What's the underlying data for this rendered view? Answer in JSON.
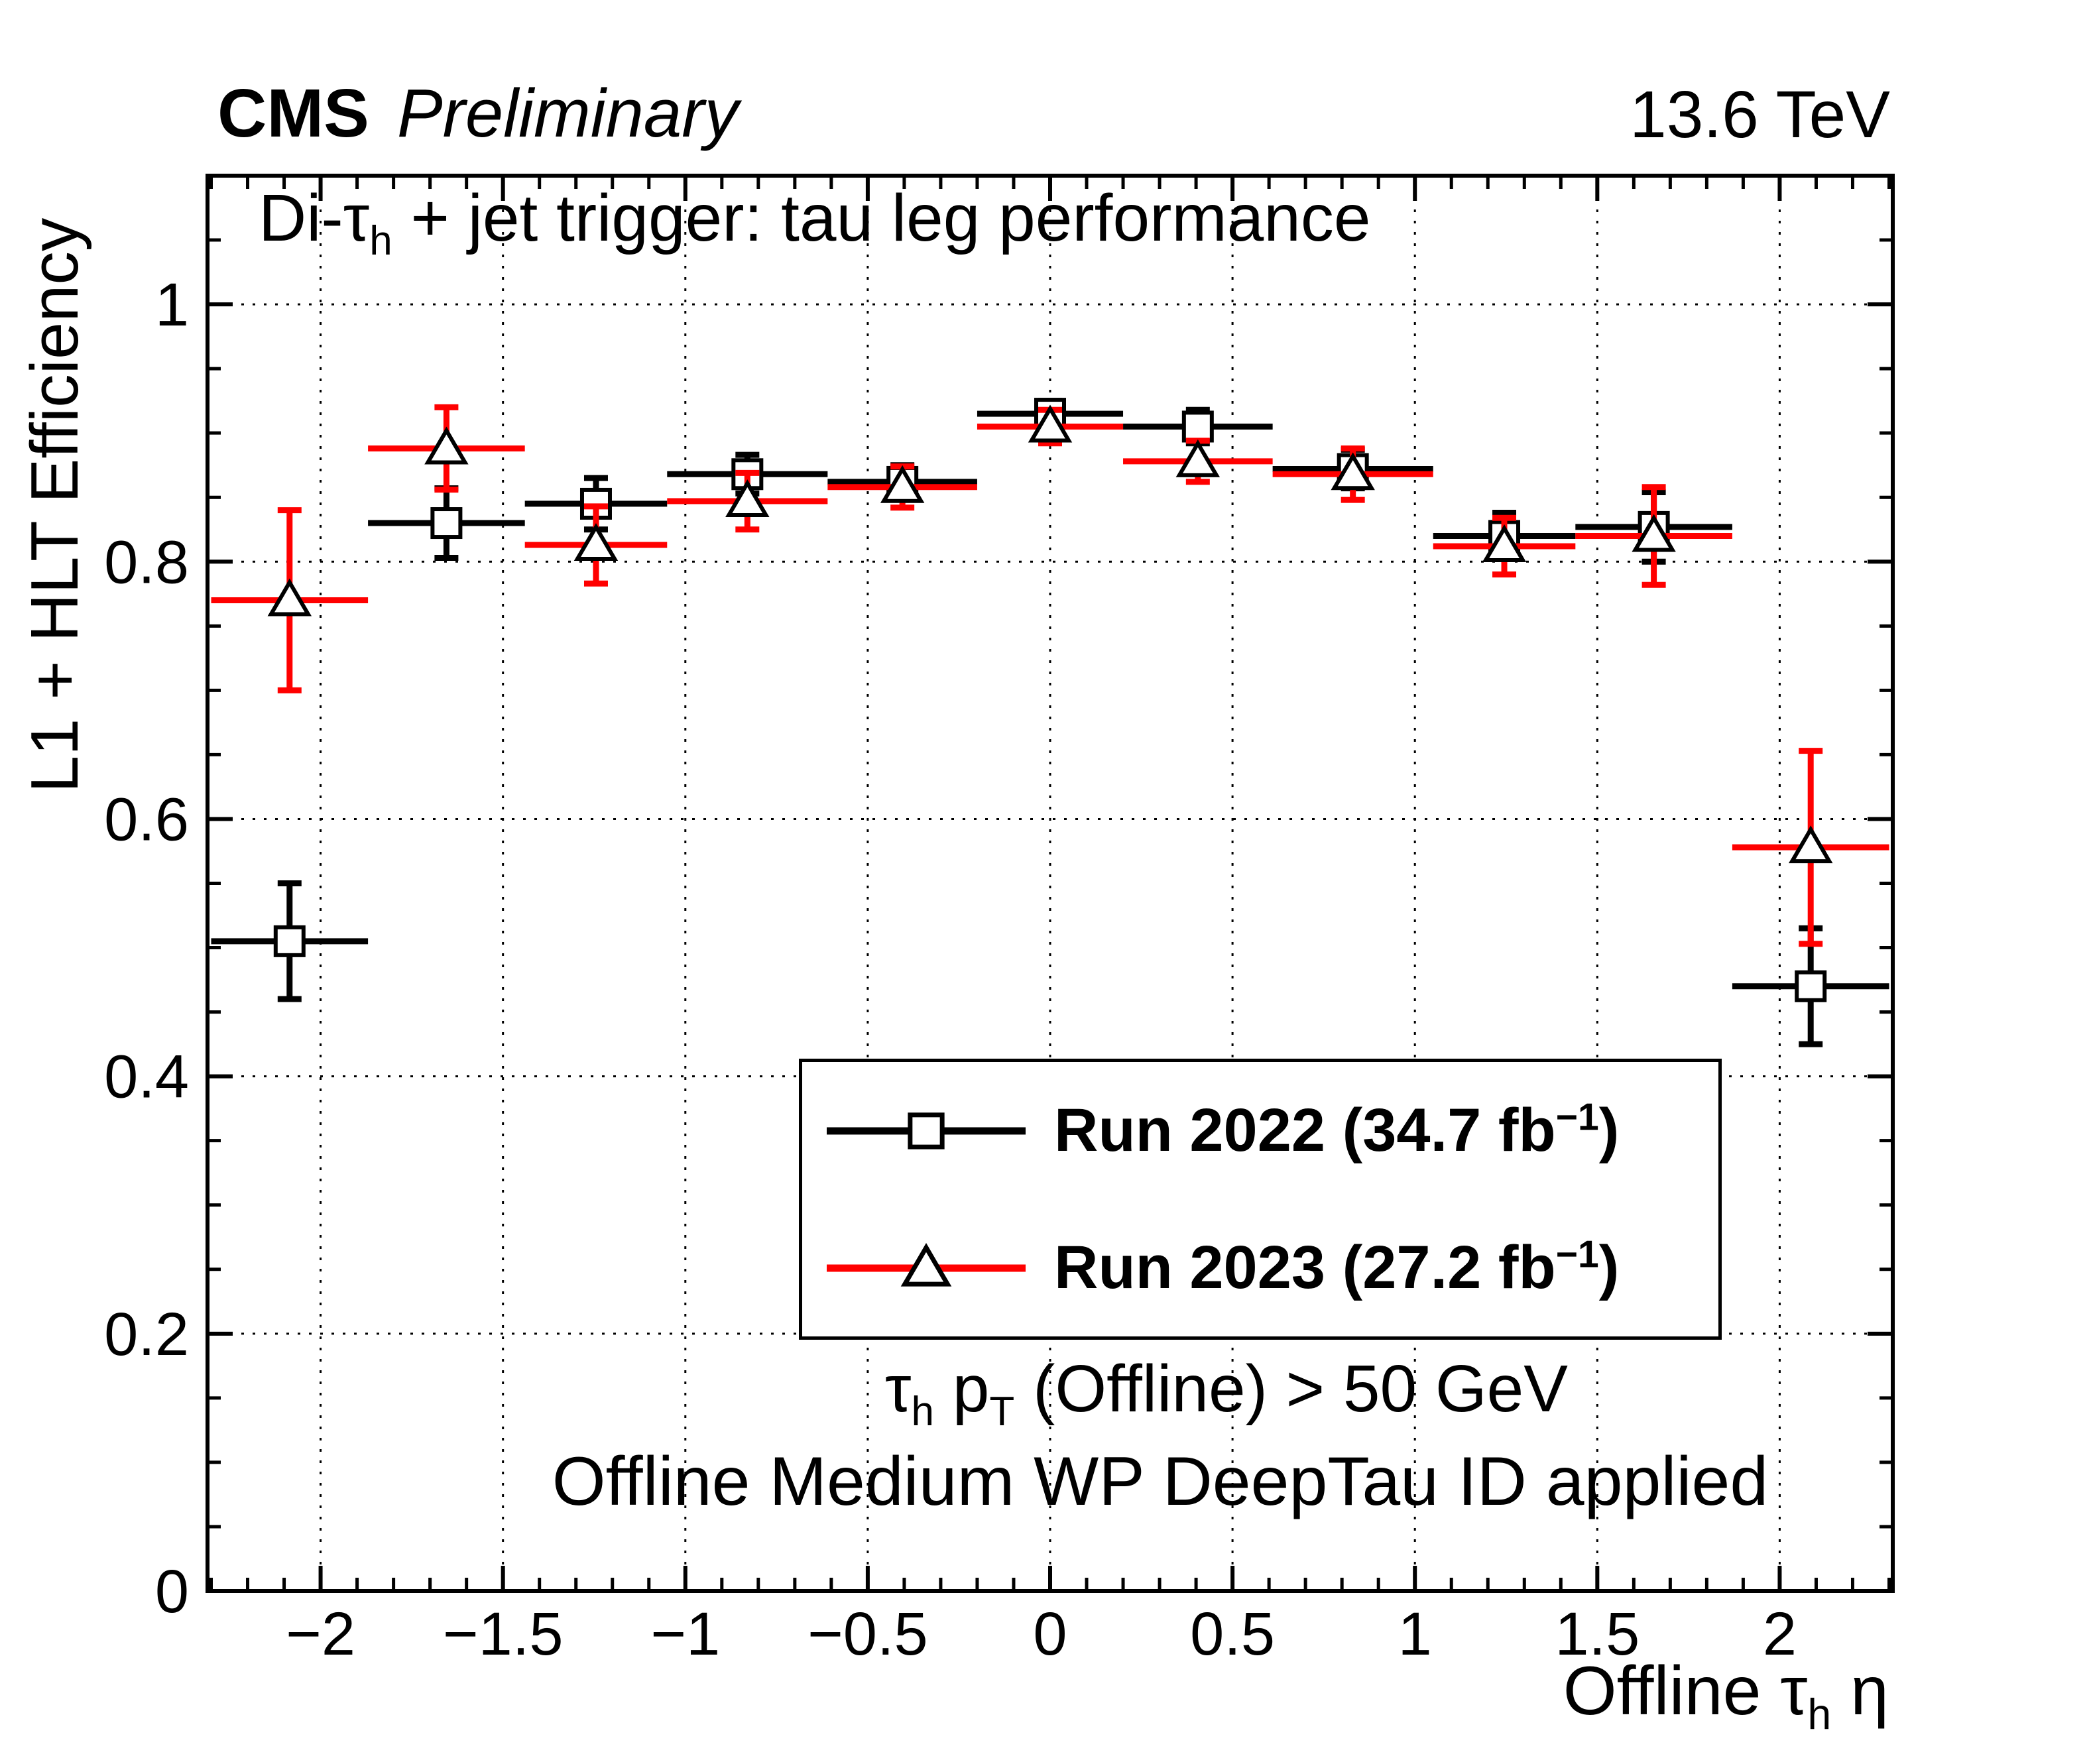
{
  "header": {
    "experiment": "CMS",
    "status": "Preliminary",
    "energy": "13.6 TeV"
  },
  "plot_title": {
    "p1": "Di-τ",
    "sub1": "h",
    "p2": " + jet trigger: tau leg performance"
  },
  "axes": {
    "y_title": "L1 + HLT Efficiency",
    "x_title": {
      "p1": "Offline τ",
      "sub1": "h",
      "p2": " η"
    }
  },
  "legend": {
    "entries": [
      {
        "main": "Run 2022 (34.7 fb",
        "sup": "−1",
        "end": ")"
      },
      {
        "main": "Run 2023 (27.2 fb",
        "sup": "−1",
        "end": ")"
      }
    ]
  },
  "annotations": {
    "cut1": {
      "p1": "τ",
      "sub1": "h",
      "p2": " p",
      "sub2": "T",
      "p3": " (Offline) > 50 GeV"
    },
    "cut2": "Offline Medium WP DeepTau ID applied"
  },
  "chart_data": {
    "type": "scatter",
    "title": "Di-tau_h + jet trigger: tau leg performance",
    "xlabel": "Offline tau_h eta",
    "ylabel": "L1 + HLT Efficiency",
    "xlim": [
      -2.31,
      2.31
    ],
    "ylim": [
      0,
      1.1
    ],
    "grid": "dotted",
    "legend_position": "center-right",
    "x_major_ticks": [
      -2,
      -1.5,
      -1,
      -0.5,
      0,
      0.5,
      1,
      1.5,
      2
    ],
    "x_tick_labels": [
      "−2",
      "−1.5",
      "−1",
      "−0.5",
      "0",
      "0.5",
      "1",
      "1.5",
      "2"
    ],
    "x_minor_step": 0.1,
    "y_major_ticks": [
      0,
      0.2,
      0.4,
      0.6,
      0.8,
      1
    ],
    "y_tick_labels": [
      "0",
      "0.2",
      "0.4",
      "0.6",
      "0.8",
      "1"
    ],
    "y_minor_step": 0.05,
    "bin_edges": [
      -2.3,
      -1.87,
      -1.44,
      -1.05,
      -0.61,
      -0.2,
      0.2,
      0.61,
      1.05,
      1.44,
      1.87,
      2.3
    ],
    "series": [
      {
        "name": "Run 2022 (34.7 fb-1)",
        "color": "#000000",
        "marker": "square",
        "marker_edge": "#000000",
        "marker_fill": "#ffffff",
        "x": [
          -2.085,
          -1.655,
          -1.245,
          -0.83,
          -0.405,
          0,
          0.405,
          0.83,
          1.245,
          1.655,
          2.085
        ],
        "y": [
          0.505,
          0.83,
          0.845,
          0.868,
          0.862,
          0.915,
          0.905,
          0.872,
          0.82,
          0.827,
          0.47
        ],
        "yerr": [
          0.045,
          0.027,
          0.02,
          0.015,
          0.013,
          0.01,
          0.013,
          0.015,
          0.018,
          0.027,
          0.045
        ]
      },
      {
        "name": "Run 2023 (27.2 fb-1)",
        "color": "#ff0000",
        "marker": "triangle",
        "marker_edge": "#000000",
        "marker_fill": "#ffffff",
        "x": [
          -2.085,
          -1.655,
          -1.245,
          -0.83,
          -0.405,
          0,
          0.405,
          0.83,
          1.245,
          1.655,
          2.085
        ],
        "y": [
          0.77,
          0.888,
          0.813,
          0.847,
          0.858,
          0.905,
          0.878,
          0.868,
          0.812,
          0.82,
          0.578
        ],
        "yerr": [
          0.07,
          0.032,
          0.03,
          0.022,
          0.016,
          0.013,
          0.016,
          0.02,
          0.022,
          0.038,
          0.075
        ]
      }
    ]
  }
}
